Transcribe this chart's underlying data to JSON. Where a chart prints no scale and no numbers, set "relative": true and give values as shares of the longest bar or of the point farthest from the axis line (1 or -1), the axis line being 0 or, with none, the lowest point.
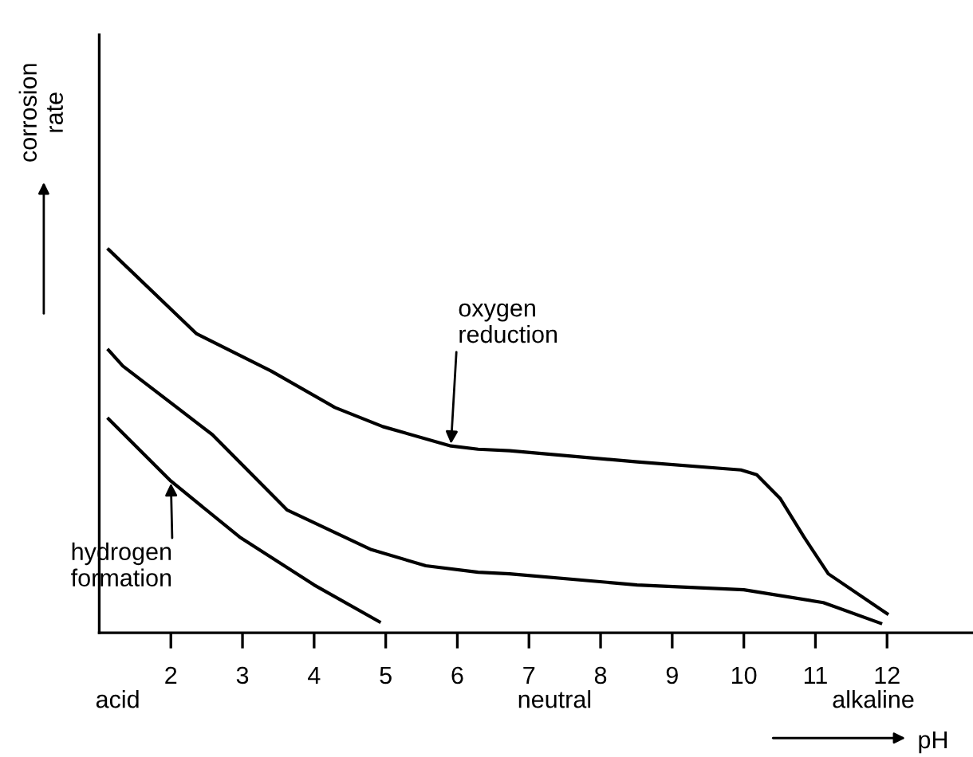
{
  "chart_data": {
    "type": "line",
    "relative": true,
    "xlabel": "pH",
    "ylabel": "corrosion\nrate",
    "xlim": [
      1,
      13.2
    ],
    "xticks": [
      2,
      3,
      4,
      5,
      6,
      7,
      8,
      9,
      10,
      11,
      12
    ],
    "marker": "none",
    "line_style": "solid",
    "grid": false,
    "series": [
      {
        "color": "#000000",
        "x": [
          1.13,
          2.36,
          3.4,
          4.29,
          4.96,
          5.91,
          6.29,
          6.73,
          8.51,
          9.96,
          10.18,
          10.51,
          10.84,
          11.18,
          12.0
        ],
        "values": [
          1.0,
          0.78,
          0.683,
          0.588,
          0.538,
          0.4875,
          0.479,
          0.475,
          0.446,
          0.425,
          0.4125,
          0.35,
          0.25,
          0.154,
          0.05
        ]
      },
      {
        "color": "#000000",
        "x": [
          1.13,
          1.33,
          2.58,
          3.62,
          4.8,
          5.56,
          6.29,
          6.73,
          8.51,
          10.0,
          11.11,
          11.91
        ],
        "values": [
          0.7375,
          0.696,
          0.517,
          0.321,
          0.217,
          0.175,
          0.158,
          0.154,
          0.125,
          0.1125,
          0.079,
          0.025
        ]
      },
      {
        "color": "#000000",
        "x": [
          1.13,
          2.0,
          2.96,
          4.0,
          4.91
        ],
        "values": [
          0.558,
          0.396,
          0.25,
          0.125,
          0.029
        ]
      }
    ],
    "annotations": [
      {
        "text": "oxygen\nreduction",
        "x": 5.91,
        "y": 0.4875
      },
      {
        "text": "hydrogen\nformation",
        "x": 2.0,
        "y": 0.396
      },
      "acid",
      "neutral",
      "alkaline"
    ]
  }
}
